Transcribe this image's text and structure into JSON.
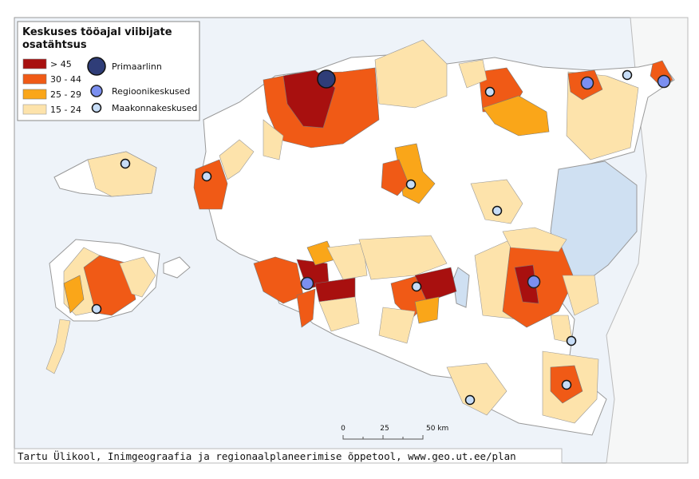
{
  "legend": {
    "title_lines": [
      "Keskuses tööajal viibijate",
      "osatähtsus"
    ],
    "classes": [
      "> 45",
      "30 - 44",
      "25 - 29",
      "15 - 24"
    ],
    "centers": [
      "Primaarlinn",
      "Regioonikeskused",
      "Maakonnakeskused"
    ]
  },
  "scale_bar": {
    "labels": [
      "0",
      "25",
      "50 km"
    ]
  },
  "credit": "Tartu Ülikool, Inimgeograafia ja regionaalplaneerimise õppetool, www.geo.ut.ee/plan"
}
